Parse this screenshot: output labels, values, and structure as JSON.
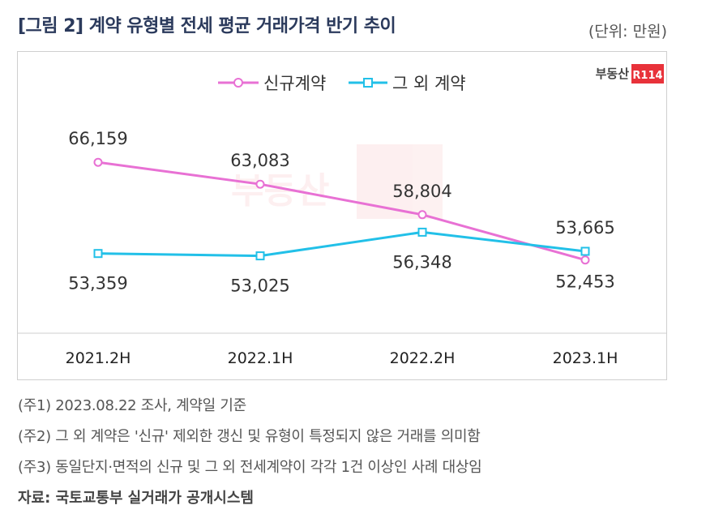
{
  "header": {
    "title": "[그림 2] 계약 유형별 전세 평균 거래가격 반기 추이",
    "unit": "(단위: 만원)"
  },
  "brand": {
    "name": "부동산",
    "badge": "R114",
    "accent_color": "#e8323a"
  },
  "chart_data": {
    "type": "line",
    "categories": [
      "2021.2H",
      "2022.1H",
      "2022.2H",
      "2023.1H"
    ],
    "series": [
      {
        "name": "신규계약",
        "values": [
          66159,
          63083,
          58804,
          52453
        ],
        "color": "#e871d4"
      },
      {
        "name": "그 외 계약",
        "values": [
          53359,
          53025,
          56348,
          53665
        ],
        "color": "#22c0e8"
      }
    ],
    "value_labels": {
      "신규계약": [
        "66,159",
        "63,083",
        "58,804",
        "52,453"
      ],
      "그 외 계약": [
        "53,359",
        "53,025",
        "56,348",
        "53,665"
      ]
    },
    "title": "계약 유형별 전세 평균 거래가격 반기 추이",
    "xlabel": "",
    "ylabel": "",
    "ylim": [
      44000,
      73000
    ],
    "legend": "top-center",
    "grid": false
  },
  "notes": [
    "(주1) 2023.08.22 조사, 계약일 기준",
    "(주2) 그 외 계약은 '신규' 제외한 갱신 및 유형이 특정되지 않은 거래를 의미함",
    "(주3) 동일단지·면적의 신규 및 그 외 전세계약이 각각 1건 이상인 사례 대상임"
  ],
  "source": "자료: 국토교통부 실거래가 공개시스템"
}
